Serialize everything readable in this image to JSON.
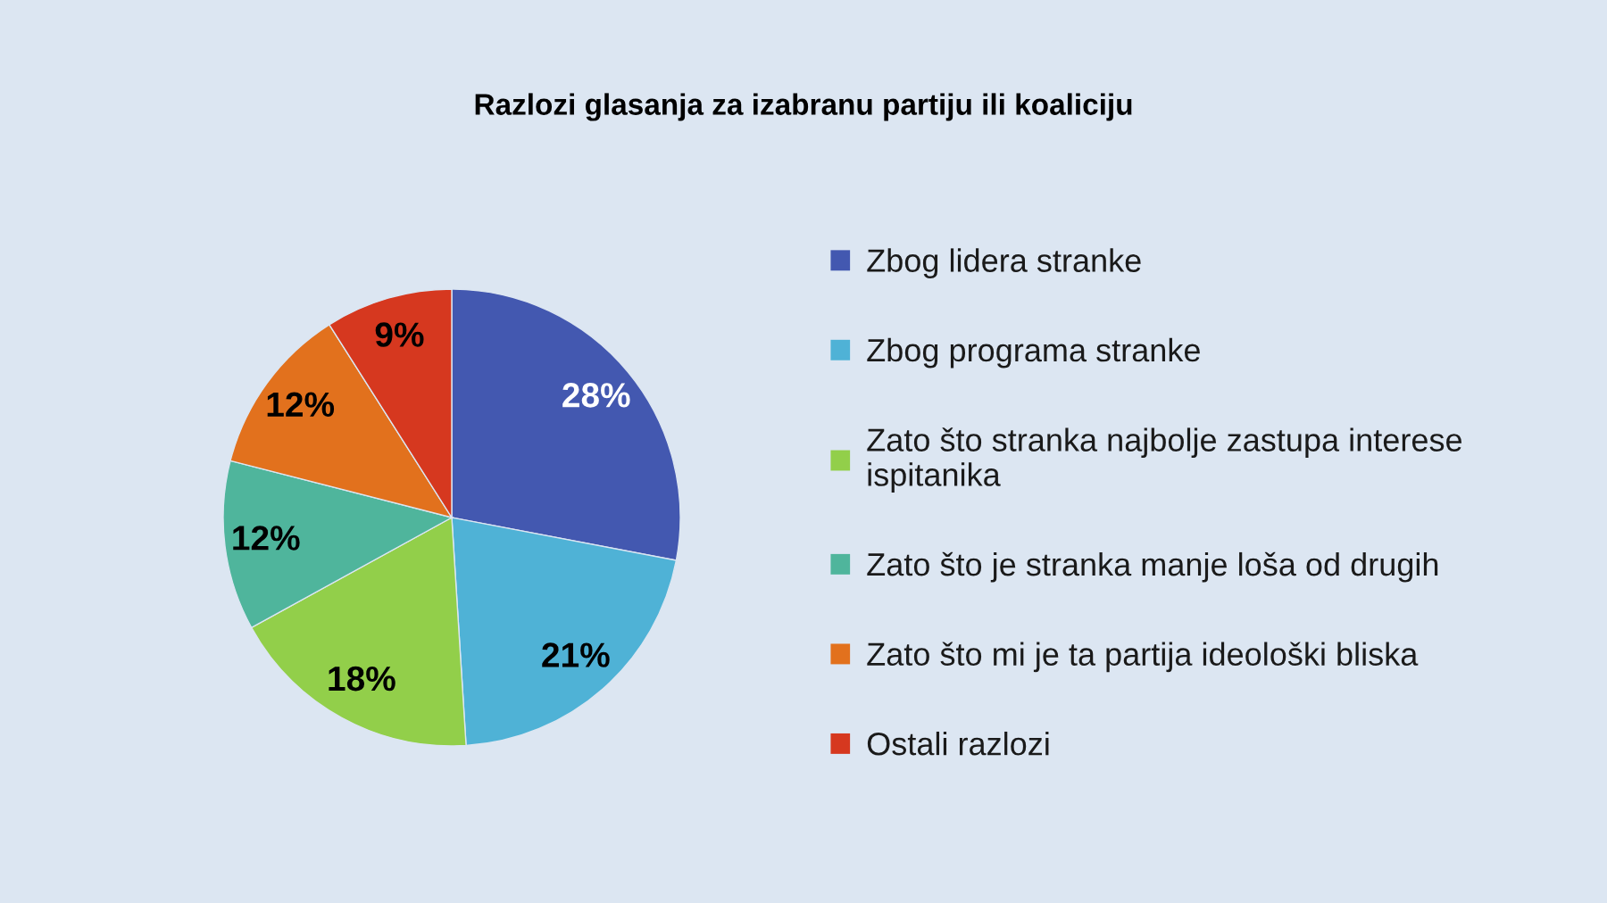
{
  "chart_data": {
    "type": "pie",
    "title": "Razlozi glasanja za izabranu partiju ili koaliciju",
    "categories": [
      "Zbog lidera stranke",
      "Zbog programa stranke",
      "Zato što stranka najbolje zastupa interese\nispitanika",
      "Zato što je stranka manje loša od drugih",
      "Zato što mi je ta partija ideološki bliska",
      "Ostali razlozi"
    ],
    "values": [
      28,
      21,
      18,
      12,
      12,
      9
    ],
    "colors": [
      "#4358b0",
      "#4fb2d6",
      "#92cf4a",
      "#4fb59c",
      "#e2711d",
      "#d6381f"
    ],
    "value_labels": [
      "28%",
      "21%",
      "18%",
      "12%",
      "12%",
      "9%"
    ],
    "legend": "right"
  }
}
